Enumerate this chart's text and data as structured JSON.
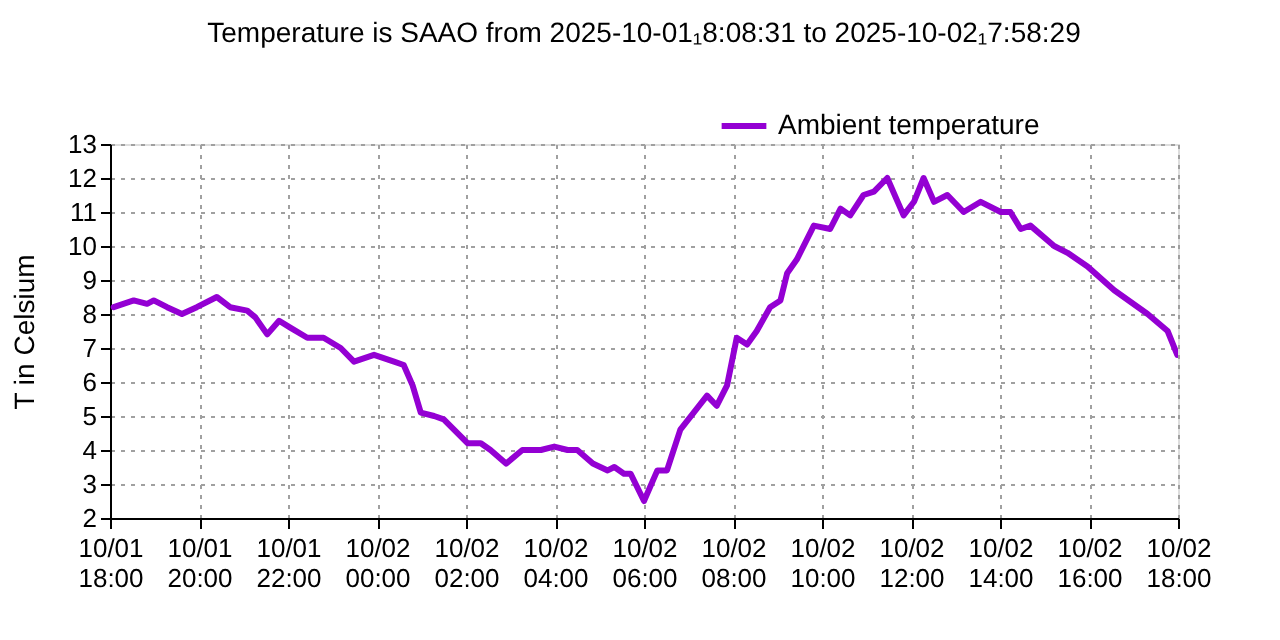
{
  "chart_data": {
    "type": "line",
    "title": "Temperature is SAAO from 2025-10-01₁8:08:31 to 2025-10-02₁7:58:29",
    "ylabel": "T in Celsium",
    "x": [
      "2025-10-01T18:05",
      "2025-10-01T18:32",
      "2025-10-01T18:50",
      "2025-10-01T18:59",
      "2025-10-01T19:17",
      "2025-10-01T19:37",
      "2025-10-01T19:57",
      "2025-10-01T20:24",
      "2025-10-01T20:42",
      "2025-10-01T21:05",
      "2025-10-01T21:16",
      "2025-10-01T21:32",
      "2025-10-01T21:48",
      "2025-10-01T22:03",
      "2025-10-01T22:26",
      "2025-10-01T22:48",
      "2025-10-01T23:11",
      "2025-10-01T23:29",
      "2025-10-01T23:56",
      "2025-10-02T00:23",
      "2025-10-02T00:36",
      "2025-10-02T00:48",
      "2025-10-02T00:59",
      "2025-10-02T01:17",
      "2025-10-02T01:30",
      "2025-10-02T02:02",
      "2025-10-02T02:20",
      "2025-10-02T02:33",
      "2025-10-02T02:54",
      "2025-10-02T03:16",
      "2025-10-02T03:41",
      "2025-10-02T03:59",
      "2025-10-02T04:17",
      "2025-10-02T04:30",
      "2025-10-02T04:51",
      "2025-10-02T05:11",
      "2025-10-02T05:20",
      "2025-10-02T05:33",
      "2025-10-02T05:42",
      "2025-10-02T06:00",
      "2025-10-02T06:18",
      "2025-10-02T06:31",
      "2025-10-02T06:49",
      "2025-10-02T07:07",
      "2025-10-02T07:25",
      "2025-10-02T07:38",
      "2025-10-02T07:52",
      "2025-10-02T08:05",
      "2025-10-02T08:19",
      "2025-10-02T08:32",
      "2025-10-02T08:50",
      "2025-10-02T09:04",
      "2025-10-02T09:13",
      "2025-10-02T09:26",
      "2025-10-02T09:49",
      "2025-10-02T10:11",
      "2025-10-02T10:25",
      "2025-10-02T10:38",
      "2025-10-02T10:56",
      "2025-10-02T11:10",
      "2025-10-02T11:28",
      "2025-10-02T11:50",
      "2025-10-02T12:04",
      "2025-10-02T12:17",
      "2025-10-02T12:31",
      "2025-10-02T12:49",
      "2025-10-02T13:11",
      "2025-10-02T13:34",
      "2025-10-02T14:01",
      "2025-10-02T14:14",
      "2025-10-02T14:28",
      "2025-10-02T14:41",
      "2025-10-02T15:13",
      "2025-10-02T15:31",
      "2025-10-02T15:58",
      "2025-10-02T16:34",
      "2025-10-02T17:19",
      "2025-10-02T17:46",
      "2025-10-02T17:59"
    ],
    "series": [
      {
        "name": "Ambient temperature",
        "color": "#9400d3",
        "values": [
          8.2,
          8.4,
          8.3,
          8.4,
          8.2,
          8.0,
          8.2,
          8.5,
          8.2,
          8.1,
          7.9,
          7.4,
          7.8,
          7.6,
          7.3,
          7.3,
          7.0,
          6.6,
          6.8,
          6.6,
          6.5,
          5.9,
          5.1,
          5.0,
          4.9,
          4.2,
          4.2,
          4.0,
          3.6,
          4.0,
          4.0,
          4.1,
          4.0,
          4.0,
          3.6,
          3.4,
          3.5,
          3.3,
          3.3,
          2.5,
          3.4,
          3.4,
          4.6,
          5.1,
          5.6,
          5.3,
          5.9,
          7.3,
          7.1,
          7.5,
          8.2,
          8.4,
          9.2,
          9.6,
          10.6,
          10.5,
          11.1,
          10.9,
          11.5,
          11.6,
          12.0,
          10.9,
          11.3,
          12.0,
          11.3,
          11.5,
          11.0,
          11.3,
          11.0,
          11.0,
          10.5,
          10.6,
          10.0,
          9.8,
          9.4,
          8.7,
          8.0,
          7.5,
          6.8
        ]
      }
    ],
    "xlim": [
      "2025-10-01T18:00",
      "2025-10-02T18:00"
    ],
    "xticks": [
      {
        "value": "2025-10-01T18:00",
        "label": "10/01 18:00"
      },
      {
        "value": "2025-10-01T20:00",
        "label": "10/01 20:00"
      },
      {
        "value": "2025-10-01T22:00",
        "label": "10/01 22:00"
      },
      {
        "value": "2025-10-02T00:00",
        "label": "10/02 00:00"
      },
      {
        "value": "2025-10-02T02:00",
        "label": "10/02 02:00"
      },
      {
        "value": "2025-10-02T04:00",
        "label": "10/02 04:00"
      },
      {
        "value": "2025-10-02T06:00",
        "label": "10/02 06:00"
      },
      {
        "value": "2025-10-02T08:00",
        "label": "10/02 08:00"
      },
      {
        "value": "2025-10-02T10:00",
        "label": "10/02 10:00"
      },
      {
        "value": "2025-10-02T12:00",
        "label": "10/02 12:00"
      },
      {
        "value": "2025-10-02T14:00",
        "label": "10/02 14:00"
      },
      {
        "value": "2025-10-02T16:00",
        "label": "10/02 16:00"
      },
      {
        "value": "2025-10-02T18:00",
        "label": "10/02 18:00"
      }
    ],
    "ylim": [
      2,
      13
    ],
    "yticks": [
      2,
      3,
      4,
      5,
      6,
      7,
      8,
      9,
      10,
      11,
      12,
      13
    ],
    "grid": true,
    "legend": "top right",
    "marker": "none",
    "line_style": "solid"
  }
}
